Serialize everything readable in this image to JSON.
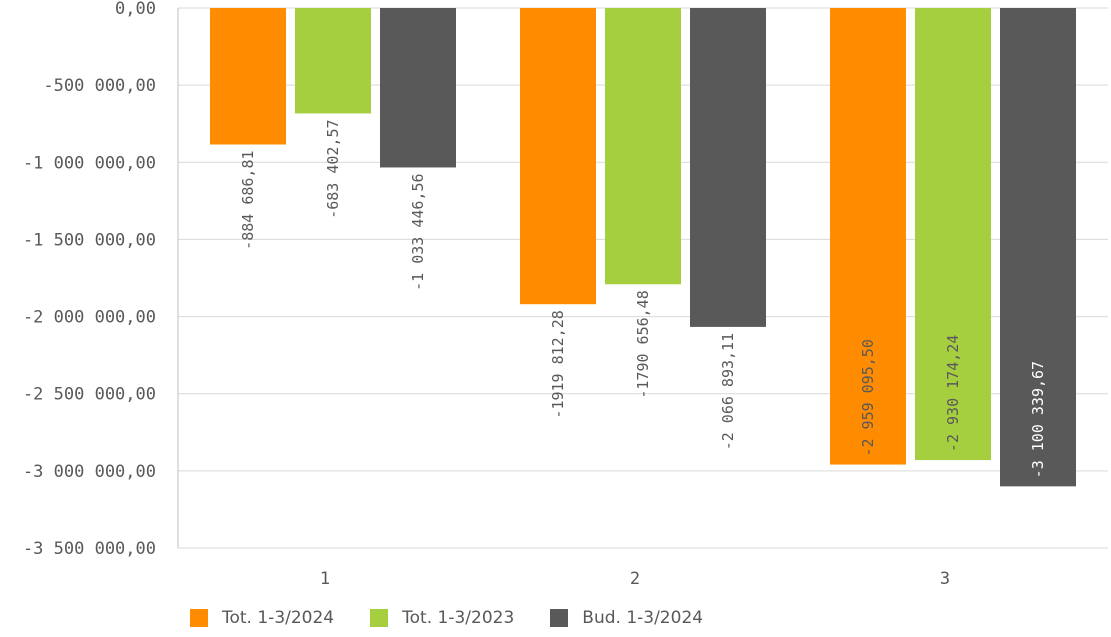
{
  "chart_data": {
    "type": "bar",
    "orientation": "vertical",
    "categories": [
      "1",
      "2",
      "3"
    ],
    "series": [
      {
        "name": "Tot. 1-3/2024",
        "color": "#ff8c00",
        "values": [
          -884686.81,
          -1919812.28,
          -2959095.5
        ],
        "labels": [
          "-884 686,81",
          "-1919 812,28",
          "-2 959 095,50"
        ]
      },
      {
        "name": "Tot. 1-3/2023",
        "color": "#a6cf40",
        "values": [
          -683402.57,
          -1790656.48,
          -2930174.24
        ],
        "labels": [
          "-683 402,57",
          "-1790 656,48",
          "-2 930 174,24"
        ]
      },
      {
        "name": "Bud. 1-3/2024",
        "color": "#595959",
        "values": [
          -1033446.56,
          -2066893.11,
          -3100339.67
        ],
        "labels": [
          "-1 033 446,56",
          "-2 066 893,11",
          "-3 100 339,67"
        ]
      }
    ],
    "y_ticks": [
      {
        "value": 0,
        "label": "0,00"
      },
      {
        "value": -500000,
        "label": "-500 000,00"
      },
      {
        "value": -1000000,
        "label": "-1 000 000,00"
      },
      {
        "value": -1500000,
        "label": "-1 500 000,00"
      },
      {
        "value": -2000000,
        "label": "-2 000 000,00"
      },
      {
        "value": -2500000,
        "label": "-2 500 000,00"
      },
      {
        "value": -3000000,
        "label": "-3 000 000,00"
      },
      {
        "value": -3500000,
        "label": "-3 500 000,00"
      }
    ],
    "ylim": [
      -3500000,
      0
    ],
    "grid": true,
    "legend_position": "bottom-left",
    "title": "",
    "xlabel": "",
    "ylabel": ""
  },
  "legend": {
    "items": [
      {
        "label": "Tot. 1-3/2024",
        "color": "#ff8c00"
      },
      {
        "label": "Tot. 1-3/2023",
        "color": "#a6cf40"
      },
      {
        "label": "Bud. 1-3/2024",
        "color": "#595959"
      }
    ]
  }
}
